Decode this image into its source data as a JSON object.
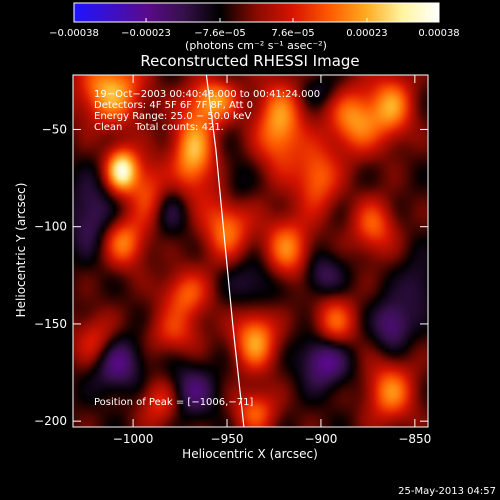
{
  "chart_data": {
    "type": "heatmap",
    "title": "Reconstructed RHESSI Image",
    "xlabel": "Heliocentric X (arcsec)",
    "ylabel": "Heliocentric Y (arcsec)",
    "x_range": [
      -1032,
      -843
    ],
    "y_range": [
      -203,
      -22
    ],
    "x_ticks": [
      -1000,
      -950,
      -900,
      -850
    ],
    "x_tick_labels": [
      "−1000",
      "−950",
      "−900",
      "−850"
    ],
    "y_ticks": [
      -50,
      -100,
      -150,
      -200
    ],
    "y_tick_labels": [
      "−50",
      "−100",
      "−150",
      "−200"
    ],
    "colorbar": {
      "range": [
        -0.00038,
        0.00038
      ],
      "ticks": [
        -0.00038,
        -0.00023,
        -7.6e-05,
        7.6e-05,
        0.00023,
        0.00038
      ],
      "tick_labels": [
        "−0.00038",
        "−0.00023",
        "−7.6e−05",
        "7.6e−05",
        "0.00023",
        "0.00038"
      ],
      "units": "(photons cm⁻² s⁻¹ asec⁻²)"
    },
    "annotations": [
      "19−Oct−2003 00:40:48.000 to 00:41:24.000",
      "Detectors: 4F 5F 6F 7F 8F, Att 0",
      "Energy Range: 25.0 − 50.0 keV",
      "Clean    Total counts: 421."
    ],
    "peak_label": "Position of Peak = [−1006,−71]",
    "peak": {
      "x": -1006,
      "y": -71
    },
    "limb": [
      [
        -961,
        -22
      ],
      [
        -956,
        -60
      ],
      [
        -952,
        -100
      ],
      [
        -947,
        -150
      ],
      [
        -941,
        -203
      ]
    ],
    "grid": false,
    "peaks": [
      {
        "x": -1006,
        "y": -71,
        "a": 1.0,
        "sx": 6,
        "sy": 8
      },
      {
        "x": -1012,
        "y": -30,
        "a": 0.75,
        "sx": 12,
        "sy": 12
      },
      {
        "x": -1005,
        "y": -108,
        "a": 0.6,
        "sx": 8,
        "sy": 9
      },
      {
        "x": -992,
        "y": -82,
        "a": 0.45,
        "sx": 7,
        "sy": 12
      },
      {
        "x": -968,
        "y": -62,
        "a": 0.75,
        "sx": 8,
        "sy": 15
      },
      {
        "x": -957,
        "y": -35,
        "a": 0.65,
        "sx": 9,
        "sy": 8
      },
      {
        "x": -950,
        "y": -100,
        "a": 0.6,
        "sx": 9,
        "sy": 12
      },
      {
        "x": -972,
        "y": -135,
        "a": 0.5,
        "sx": 9,
        "sy": 9
      },
      {
        "x": -922,
        "y": -48,
        "a": 0.7,
        "sx": 9,
        "sy": 16
      },
      {
        "x": -918,
        "y": -112,
        "a": 0.6,
        "sx": 9,
        "sy": 12
      },
      {
        "x": -935,
        "y": -158,
        "a": 0.7,
        "sx": 8,
        "sy": 11
      },
      {
        "x": -902,
        "y": -75,
        "a": 0.55,
        "sx": 8,
        "sy": 12
      },
      {
        "x": -893,
        "y": -150,
        "a": 0.55,
        "sx": 8,
        "sy": 10
      },
      {
        "x": -882,
        "y": -45,
        "a": 0.65,
        "sx": 10,
        "sy": 12
      },
      {
        "x": -872,
        "y": -100,
        "a": 0.5,
        "sx": 8,
        "sy": 10
      },
      {
        "x": -863,
        "y": -185,
        "a": 0.6,
        "sx": 9,
        "sy": 11
      },
      {
        "x": -862,
        "y": -38,
        "a": 0.6,
        "sx": 8,
        "sy": 12
      },
      {
        "x": -1020,
        "y": -160,
        "a": 0.45,
        "sx": 8,
        "sy": 10
      },
      {
        "x": -985,
        "y": -190,
        "a": 0.45,
        "sx": 8,
        "sy": 9
      },
      {
        "x": -935,
        "y": -195,
        "a": 0.5,
        "sx": 8,
        "sy": 8
      },
      {
        "x": -978,
        "y": -155,
        "a": 0.35,
        "sx": 10,
        "sy": 8
      },
      {
        "x": -1010,
        "y": -170,
        "a": -0.5,
        "sx": 10,
        "sy": 10
      },
      {
        "x": -970,
        "y": -185,
        "a": -0.4,
        "sx": 10,
        "sy": 10
      },
      {
        "x": -898,
        "y": -168,
        "a": -0.55,
        "sx": 9,
        "sy": 10
      },
      {
        "x": -862,
        "y": -150,
        "a": -0.45,
        "sx": 7,
        "sy": 9
      },
      {
        "x": -900,
        "y": -125,
        "a": -0.35,
        "sx": 8,
        "sy": 8
      },
      {
        "x": -935,
        "y": -128,
        "a": -0.3,
        "sx": 10,
        "sy": 10
      },
      {
        "x": -1022,
        "y": -95,
        "a": -0.35,
        "sx": 9,
        "sy": 14
      },
      {
        "x": -980,
        "y": -92,
        "a": -0.25,
        "sx": 7,
        "sy": 9
      },
      {
        "x": -945,
        "y": -80,
        "a": -0.2,
        "sx": 6,
        "sy": 10
      },
      {
        "x": -848,
        "y": -130,
        "a": -0.25,
        "sx": 7,
        "sy": 10
      },
      {
        "x": -900,
        "y": -30,
        "a": -0.2,
        "sx": 8,
        "sy": 6
      }
    ]
  },
  "footer": {
    "timestamp": "25-May-2013 04:57"
  },
  "colors": {
    "axis": "#ffffff",
    "limb": "#ffffff",
    "colormap": [
      "#1e14ff",
      "#3b10c8",
      "#5a0a8c",
      "#36104a",
      "#000000",
      "#8a0a00",
      "#d81400",
      "#ff5a00",
      "#ffaa20",
      "#fff5a0",
      "#ffffff"
    ]
  }
}
